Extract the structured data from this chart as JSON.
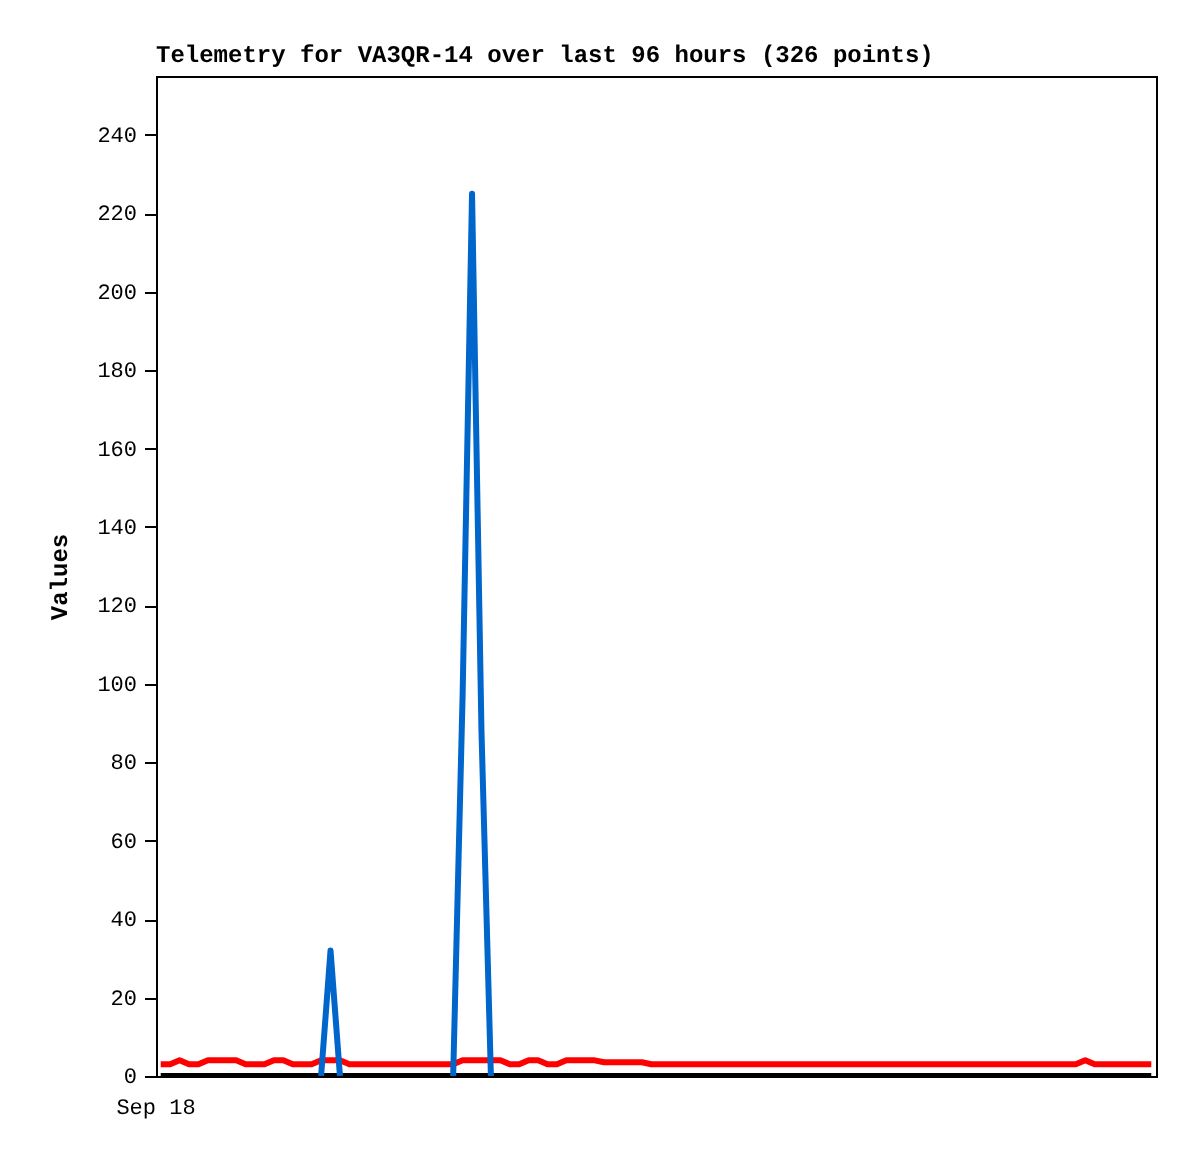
{
  "chart_data": {
    "type": "line",
    "title": "Telemetry for VA3QR-14 over last 96 hours (326 points)",
    "ylabel": "Values",
    "annotations": [
      "Sep 18"
    ],
    "categories": [
      null,
      null,
      null,
      null,
      null,
      null,
      null,
      null,
      null,
      null,
      null,
      null,
      null,
      null,
      null,
      null,
      null,
      null,
      null,
      null,
      null,
      null,
      null,
      null,
      null,
      null,
      null,
      null,
      null,
      null,
      null,
      null,
      null,
      null,
      null,
      null,
      null,
      null,
      null,
      null,
      null,
      null,
      null,
      null,
      null,
      null,
      null,
      null,
      null,
      null,
      null,
      null,
      null,
      null,
      null,
      null,
      null,
      null,
      null,
      null,
      null,
      null,
      null,
      null,
      null,
      null,
      null,
      null,
      null,
      null,
      null,
      null,
      null,
      null,
      null,
      null,
      null,
      null,
      null,
      null,
      null,
      null,
      null,
      null,
      null,
      null,
      null,
      null,
      null,
      null,
      null,
      null,
      null,
      null,
      null,
      null,
      null,
      null,
      null,
      null,
      null,
      null,
      null,
      null,
      null,
      null
    ],
    "ylim": [
      0,
      255
    ],
    "yticks": [
      0,
      20,
      40,
      60,
      80,
      100,
      120,
      140,
      160,
      180,
      200,
      220,
      240
    ],
    "grid": false,
    "marker": "none",
    "line_style": "solid",
    "series": [
      {
        "color": "#000000",
        "values": [
          0,
          0,
          0,
          0,
          0,
          0,
          0,
          0,
          0,
          0,
          0,
          0,
          0,
          0,
          0,
          0,
          0,
          0,
          0,
          0,
          0,
          0,
          0,
          0,
          0,
          0,
          0,
          0,
          0,
          0,
          0,
          0,
          0,
          0,
          0,
          0,
          0,
          0,
          0,
          0,
          0,
          0,
          0,
          0,
          0,
          0,
          0,
          0,
          0,
          0,
          0,
          0,
          0,
          0,
          0,
          0,
          0,
          0,
          0,
          0,
          0,
          0,
          0,
          0,
          0,
          0,
          0,
          0,
          0,
          0,
          0,
          0,
          0,
          0,
          0,
          0,
          0,
          0,
          0,
          0,
          0,
          0,
          0,
          0,
          0,
          0,
          0,
          0,
          0,
          0,
          0,
          0,
          0,
          0,
          0,
          0,
          0,
          0,
          0,
          0,
          0,
          0,
          0,
          0,
          0,
          0
        ]
      },
      {
        "color": "#ff0000",
        "values": [
          3,
          3,
          4,
          3,
          3,
          4,
          4,
          4,
          4,
          3,
          3,
          3,
          4,
          4,
          3,
          3,
          3,
          4,
          4,
          4,
          3,
          3,
          3,
          3,
          3,
          3,
          3,
          3,
          3,
          3,
          3,
          3,
          4,
          4,
          4,
          4,
          4,
          3,
          3,
          4,
          4,
          3,
          3,
          4,
          4,
          4,
          4,
          3.5,
          3.5,
          3.5,
          3.5,
          3.5,
          3,
          3,
          3,
          3,
          3,
          3,
          3,
          3,
          3,
          3,
          3,
          3,
          3,
          3,
          3,
          3,
          3,
          3,
          3,
          3,
          3,
          3,
          3,
          3,
          3,
          3,
          3,
          3,
          3,
          3,
          3,
          3,
          3,
          3,
          3,
          3,
          3,
          3,
          3,
          3,
          3,
          3,
          3,
          3,
          3,
          3,
          4,
          3,
          3,
          3,
          3,
          3,
          3,
          3
        ]
      },
      {
        "color": "#0066cc",
        "values": [
          null,
          null,
          null,
          null,
          null,
          null,
          null,
          null,
          null,
          null,
          null,
          null,
          null,
          null,
          null,
          null,
          null,
          0,
          32,
          0,
          null,
          null,
          null,
          null,
          null,
          null,
          null,
          null,
          null,
          null,
          null,
          0,
          97,
          225,
          88,
          0,
          null,
          null,
          null,
          null,
          null,
          null,
          null,
          null,
          null,
          null,
          null,
          null,
          null,
          null,
          null,
          null,
          null,
          null,
          null,
          null,
          null,
          null,
          null,
          null,
          null,
          null,
          null,
          null,
          null,
          null,
          null,
          null,
          null,
          null,
          null,
          null,
          null,
          null,
          null,
          null,
          null,
          null,
          null,
          null,
          null,
          null,
          null,
          null,
          null,
          null,
          null,
          null,
          null,
          null,
          null,
          null,
          null,
          null,
          null,
          null,
          null,
          null,
          null,
          null,
          null,
          null,
          null,
          null,
          null,
          null
        ]
      }
    ]
  }
}
